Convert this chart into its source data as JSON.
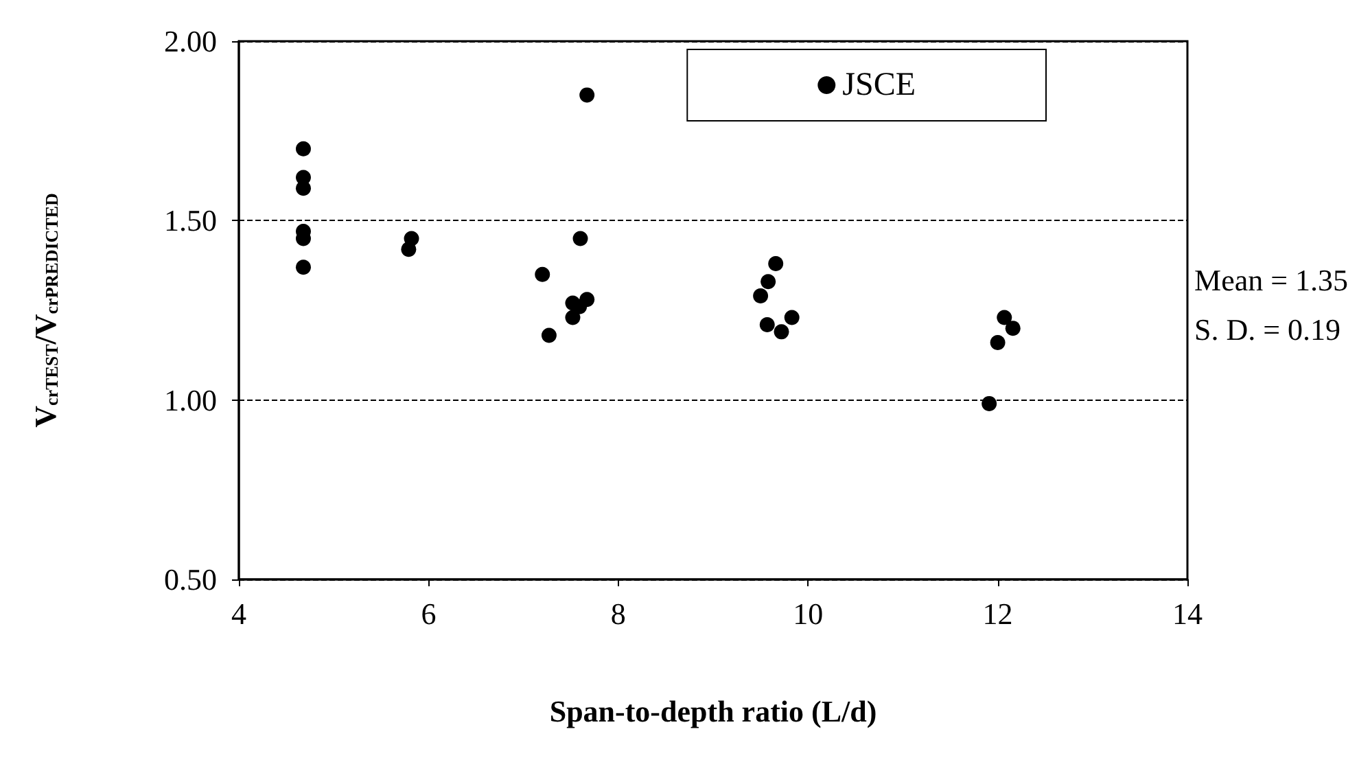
{
  "chart_data": {
    "type": "scatter",
    "xlabel": "Span-to-depth ratio (L/d)",
    "ylabel": "V$_{crTEST}$/V$_{crPREDICTED}$",
    "series": [
      {
        "name": "JSCE",
        "color": "#000000",
        "x": [
          4.68,
          4.68,
          4.68,
          4.68,
          4.68,
          4.68,
          5.82,
          5.79,
          7.67,
          7.6,
          7.2,
          7.27,
          7.52,
          7.52,
          7.59,
          7.67,
          9.66,
          9.58,
          9.5,
          9.57,
          9.72,
          9.83,
          12.07,
          12.16,
          12.0,
          11.91
        ],
        "values": [
          1.7,
          1.62,
          1.59,
          1.47,
          1.45,
          1.37,
          1.45,
          1.42,
          1.85,
          1.45,
          1.35,
          1.18,
          1.27,
          1.23,
          1.26,
          1.28,
          1.38,
          1.33,
          1.29,
          1.21,
          1.19,
          1.23,
          1.23,
          1.2,
          1.16,
          0.99
        ]
      }
    ],
    "xlim": [
      4,
      14
    ],
    "xticks": [
      4,
      6,
      8,
      10,
      12,
      14
    ],
    "ylim": [
      0.5,
      2
    ],
    "yticks": [
      {
        "value": 0.5,
        "label": "0.50"
      },
      {
        "value": 1,
        "label": "1.00"
      },
      {
        "value": 1.5,
        "label": "1.50"
      },
      {
        "value": 2,
        "label": "2.00"
      }
    ],
    "grid": "y",
    "legend": "top right",
    "marker": "circle",
    "annotations": [
      "Mean = 1.35\nS. D. = 0.19"
    ]
  }
}
